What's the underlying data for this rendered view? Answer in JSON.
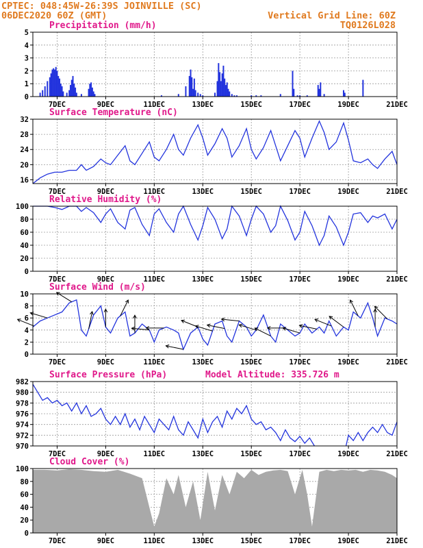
{
  "header": {
    "line1_left": "CPTEC:   048:45W-26:39S  JOINVILLE (SC)",
    "line2_left": "06DEC2020 60Z (GMT)",
    "line1_right": "Vertical Grid Line: 60Z",
    "line2_right": "TQ0126L028"
  },
  "colors": {
    "header": "#e07a1f",
    "title": "#e0188a",
    "line": "#2233dd",
    "bar": "#2233dd",
    "cloud": "#a9a9a9"
  },
  "chart_data": [
    {
      "type": "bar",
      "title": "Precipitation (mm/h)",
      "ylim": [
        0,
        5
      ],
      "yticks": [
        0,
        1,
        2,
        3,
        4,
        5
      ],
      "x_ticks": [
        "7DEC",
        "9DEC",
        "11DEC",
        "13DEC",
        "15DEC",
        "17DEC",
        "19DEC",
        "21DEC"
      ],
      "x_unit": "day",
      "x": [
        6.3,
        6.4,
        6.5,
        6.6,
        6.7,
        6.75,
        6.8,
        6.85,
        6.9,
        6.95,
        7.0,
        7.05,
        7.1,
        7.15,
        7.2,
        7.25,
        7.4,
        7.5,
        7.55,
        7.6,
        7.65,
        7.7,
        7.75,
        7.8,
        8.0,
        8.3,
        8.35,
        8.4,
        8.45,
        8.5,
        8.55,
        11.3,
        12.0,
        12.3,
        12.45,
        12.5,
        12.55,
        12.6,
        12.65,
        12.7,
        12.8,
        12.9,
        13.0,
        13.5,
        13.6,
        13.65,
        13.7,
        13.75,
        13.8,
        13.85,
        13.9,
        13.95,
        14.0,
        14.05,
        14.1,
        14.2,
        14.3,
        14.4,
        15.0,
        15.2,
        15.4,
        16.2,
        16.7,
        16.75,
        16.9,
        17.0,
        17.3,
        17.75,
        17.8,
        17.85,
        18.0,
        18.8,
        18.85,
        19.6
      ],
      "values": [
        0.3,
        0.5,
        0.8,
        1.2,
        1.5,
        1.8,
        2.1,
        2.2,
        2.1,
        2.3,
        2.0,
        1.6,
        1.4,
        1.0,
        0.8,
        0.4,
        0.3,
        0.5,
        0.9,
        1.3,
        1.6,
        1.0,
        0.7,
        0.3,
        0.2,
        0.6,
        1.0,
        1.1,
        0.7,
        0.4,
        0.2,
        0.1,
        0.2,
        0.8,
        1.6,
        2.1,
        1.5,
        0.6,
        1.4,
        0.5,
        0.3,
        0.2,
        0.1,
        0.3,
        1.2,
        2.6,
        1.9,
        1.2,
        1.8,
        2.4,
        1.4,
        0.9,
        1.1,
        0.6,
        0.4,
        0.2,
        0.1,
        0.1,
        0.1,
        0.1,
        0.1,
        0.2,
        2.0,
        0.6,
        0.1,
        0.1,
        0.1,
        0.9,
        0.6,
        1.1,
        0.2,
        0.5,
        0.3,
        1.3
      ]
    },
    {
      "type": "line",
      "title": "Surface Temperature (nC)",
      "ylim": [
        15,
        32
      ],
      "yticks": [
        16,
        20,
        24,
        28,
        32
      ],
      "x_ticks": [
        "7DEC",
        "9DEC",
        "11DEC",
        "13DEC",
        "15DEC",
        "17DEC",
        "19DEC",
        "21DEC"
      ],
      "x_unit": "day",
      "x": [
        6.0,
        6.3,
        6.6,
        6.9,
        7.2,
        7.5,
        7.8,
        8.0,
        8.2,
        8.5,
        8.8,
        9.0,
        9.2,
        9.5,
        9.8,
        10.0,
        10.2,
        10.5,
        10.8,
        11.0,
        11.2,
        11.5,
        11.8,
        12.0,
        12.2,
        12.5,
        12.8,
        13.0,
        13.2,
        13.5,
        13.8,
        14.0,
        14.2,
        14.5,
        14.8,
        15.0,
        15.2,
        15.5,
        15.8,
        16.0,
        16.2,
        16.5,
        16.8,
        17.0,
        17.2,
        17.5,
        17.8,
        18.0,
        18.2,
        18.5,
        18.8,
        19.0,
        19.2,
        19.5,
        19.8,
        20.0,
        20.2,
        20.5,
        20.8,
        21.0
      ],
      "values": [
        15.0,
        16.5,
        17.5,
        18.0,
        18.0,
        18.5,
        18.5,
        20.0,
        18.5,
        19.5,
        21.5,
        20.5,
        20.0,
        22.5,
        25.0,
        21.0,
        20.0,
        23.0,
        26.0,
        22.0,
        21.0,
        24.0,
        28.0,
        24.0,
        22.5,
        27.0,
        30.5,
        27.0,
        22.5,
        25.5,
        29.5,
        27.0,
        22.0,
        25.0,
        29.5,
        24.0,
        21.5,
        24.5,
        29.0,
        25.0,
        21.0,
        25.0,
        29.0,
        27.0,
        22.0,
        27.0,
        31.5,
        28.5,
        24.0,
        26.0,
        31.0,
        26.5,
        21.0,
        20.5,
        21.5,
        20.0,
        19.0,
        21.5,
        23.5,
        20.0
      ]
    },
    {
      "type": "line",
      "title": "Relative Humidity (%)",
      "ylim": [
        0,
        100
      ],
      "yticks": [
        0,
        20,
        40,
        60,
        80,
        100
      ],
      "x_ticks": [
        "7DEC",
        "9DEC",
        "11DEC",
        "13DEC",
        "15DEC",
        "17DEC",
        "19DEC",
        "21DEC"
      ],
      "x_unit": "day",
      "x": [
        6.0,
        6.3,
        6.6,
        6.9,
        7.2,
        7.5,
        7.8,
        8.0,
        8.2,
        8.5,
        8.8,
        9.0,
        9.2,
        9.5,
        9.8,
        10.0,
        10.2,
        10.5,
        10.8,
        11.0,
        11.2,
        11.5,
        11.8,
        12.0,
        12.2,
        12.5,
        12.8,
        13.0,
        13.2,
        13.5,
        13.8,
        14.0,
        14.2,
        14.5,
        14.8,
        15.0,
        15.2,
        15.5,
        15.8,
        16.0,
        16.2,
        16.5,
        16.8,
        17.0,
        17.2,
        17.5,
        17.8,
        18.0,
        18.2,
        18.5,
        18.8,
        19.0,
        19.2,
        19.5,
        19.8,
        20.0,
        20.2,
        20.5,
        20.8,
        21.0
      ],
      "values": [
        100,
        100,
        100,
        98,
        95,
        100,
        100,
        92,
        98,
        90,
        75,
        88,
        96,
        75,
        65,
        94,
        98,
        72,
        55,
        88,
        96,
        75,
        60,
        88,
        100,
        72,
        48,
        70,
        98,
        80,
        50,
        65,
        100,
        85,
        55,
        80,
        100,
        88,
        60,
        70,
        100,
        78,
        48,
        60,
        92,
        70,
        40,
        55,
        85,
        68,
        40,
        60,
        88,
        90,
        75,
        85,
        82,
        88,
        65,
        80
      ]
    },
    {
      "type": "line",
      "title": "Surface Wind (m/s)",
      "ylim": [
        0,
        10
      ],
      "yticks": [
        0,
        2,
        4,
        6,
        8,
        10
      ],
      "x_ticks": [
        "7DEC",
        "9DEC",
        "11DEC",
        "13DEC",
        "15DEC",
        "17DEC",
        "19DEC",
        "21DEC"
      ],
      "x_unit": "day",
      "x": [
        6.0,
        6.3,
        6.6,
        6.9,
        7.2,
        7.5,
        7.8,
        8.0,
        8.2,
        8.5,
        8.8,
        9.0,
        9.2,
        9.5,
        9.8,
        10.0,
        10.2,
        10.5,
        10.8,
        11.0,
        11.2,
        11.5,
        11.8,
        12.0,
        12.2,
        12.5,
        12.8,
        13.0,
        13.2,
        13.5,
        13.8,
        14.0,
        14.2,
        14.5,
        14.8,
        15.0,
        15.2,
        15.5,
        15.8,
        16.0,
        16.2,
        16.5,
        16.8,
        17.0,
        17.2,
        17.5,
        17.8,
        18.0,
        18.2,
        18.5,
        18.8,
        19.0,
        19.2,
        19.5,
        19.8,
        20.0,
        20.2,
        20.5,
        20.8,
        21.0
      ],
      "values": [
        4.5,
        5.5,
        6.0,
        6.5,
        7.0,
        8.5,
        9.0,
        4.0,
        3.0,
        6.5,
        8.0,
        4.5,
        3.5,
        6.0,
        7.0,
        3.0,
        3.5,
        5.0,
        4.0,
        2.0,
        4.0,
        4.5,
        4.0,
        3.5,
        0.8,
        3.5,
        4.5,
        2.5,
        1.5,
        5.0,
        5.5,
        3.0,
        2.0,
        5.5,
        4.5,
        3.0,
        4.0,
        6.5,
        3.0,
        2.0,
        5.0,
        4.0,
        3.0,
        3.5,
        5.0,
        3.5,
        4.5,
        3.5,
        5.5,
        3.0,
        4.5,
        4.0,
        7.0,
        6.0,
        8.5,
        6.0,
        3.0,
        6.0,
        5.5,
        5.0
      ]
    },
    {
      "type": "line",
      "title": "Surface Pressure (hPa)",
      "subtitle": "Model Altitude: 335.726 m",
      "ylim": [
        970,
        982
      ],
      "yticks": [
        970,
        972,
        974,
        976,
        978,
        980,
        982
      ],
      "x_ticks": [
        "7DEC",
        "9DEC",
        "11DEC",
        "13DEC",
        "15DEC",
        "17DEC",
        "19DEC",
        "21DEC"
      ],
      "x_unit": "day",
      "x": [
        6.0,
        6.2,
        6.4,
        6.6,
        6.8,
        7.0,
        7.2,
        7.4,
        7.6,
        7.8,
        8.0,
        8.2,
        8.4,
        8.6,
        8.8,
        9.0,
        9.2,
        9.4,
        9.6,
        9.8,
        10.0,
        10.2,
        10.4,
        10.6,
        10.8,
        11.0,
        11.2,
        11.4,
        11.6,
        11.8,
        12.0,
        12.2,
        12.4,
        12.6,
        12.8,
        13.0,
        13.2,
        13.4,
        13.6,
        13.8,
        14.0,
        14.2,
        14.4,
        14.6,
        14.8,
        15.0,
        15.2,
        15.4,
        15.6,
        15.8,
        16.0,
        16.2,
        16.4,
        16.6,
        16.8,
        17.0,
        17.2,
        17.4,
        17.6
      ],
      "values": [
        981.5,
        980.0,
        978.5,
        979.0,
        978.0,
        978.5,
        977.5,
        978.0,
        976.5,
        978.0,
        976.0,
        977.5,
        975.5,
        976.0,
        977.0,
        975.0,
        974.0,
        975.5,
        974.0,
        976.0,
        973.5,
        975.0,
        973.0,
        975.5,
        974.0,
        972.5,
        975.0,
        974.0,
        973.0,
        975.5,
        973.0,
        972.0,
        974.5,
        973.0,
        971.5,
        975.0,
        972.5,
        974.5,
        975.5,
        973.5,
        976.5,
        975.0,
        977.0,
        976.0,
        977.5,
        975.0,
        974.0,
        974.5,
        973.0,
        973.5,
        972.5,
        971.0,
        973.0,
        971.5,
        970.8,
        971.8,
        970.5,
        971.5,
        970.0
      ],
      "x2": [
        18.9,
        19.0,
        19.2,
        19.4,
        19.6,
        19.8,
        20.0,
        20.2,
        20.4,
        20.6,
        20.8,
        21.0
      ],
      "values2": [
        970.0,
        972.0,
        971.0,
        972.5,
        971.0,
        972.5,
        973.5,
        972.5,
        974.0,
        972.5,
        972.0,
        974.5
      ]
    },
    {
      "type": "area",
      "title": "Cloud Cover (%)",
      "ylim": [
        0,
        100
      ],
      "yticks": [
        0,
        20,
        40,
        60,
        80,
        100
      ],
      "x_ticks": [
        "7DEC",
        "9DEC",
        "11DEC",
        "13DEC",
        "15DEC",
        "17DEC",
        "19DEC",
        "21DEC"
      ],
      "x_unit": "day",
      "x": [
        6.0,
        6.5,
        7.0,
        7.5,
        8.0,
        8.5,
        9.0,
        9.5,
        10.0,
        10.5,
        10.8,
        11.0,
        11.2,
        11.5,
        11.8,
        12.0,
        12.3,
        12.6,
        12.9,
        13.2,
        13.5,
        13.8,
        14.1,
        14.4,
        14.7,
        15.0,
        15.3,
        15.6,
        15.9,
        16.2,
        16.5,
        16.8,
        17.1,
        17.3,
        17.5,
        17.8,
        18.1,
        18.4,
        18.7,
        19.0,
        19.3,
        19.6,
        19.9,
        20.2,
        20.5,
        20.8,
        21.0
      ],
      "values": [
        98,
        98,
        97,
        99,
        98,
        96,
        95,
        98,
        92,
        85,
        40,
        10,
        30,
        85,
        60,
        90,
        40,
        80,
        20,
        95,
        35,
        90,
        60,
        95,
        85,
        98,
        90,
        95,
        97,
        98,
        96,
        60,
        98,
        60,
        10,
        95,
        98,
        96,
        98,
        97,
        98,
        95,
        98,
        97,
        95,
        90,
        85
      ]
    }
  ]
}
